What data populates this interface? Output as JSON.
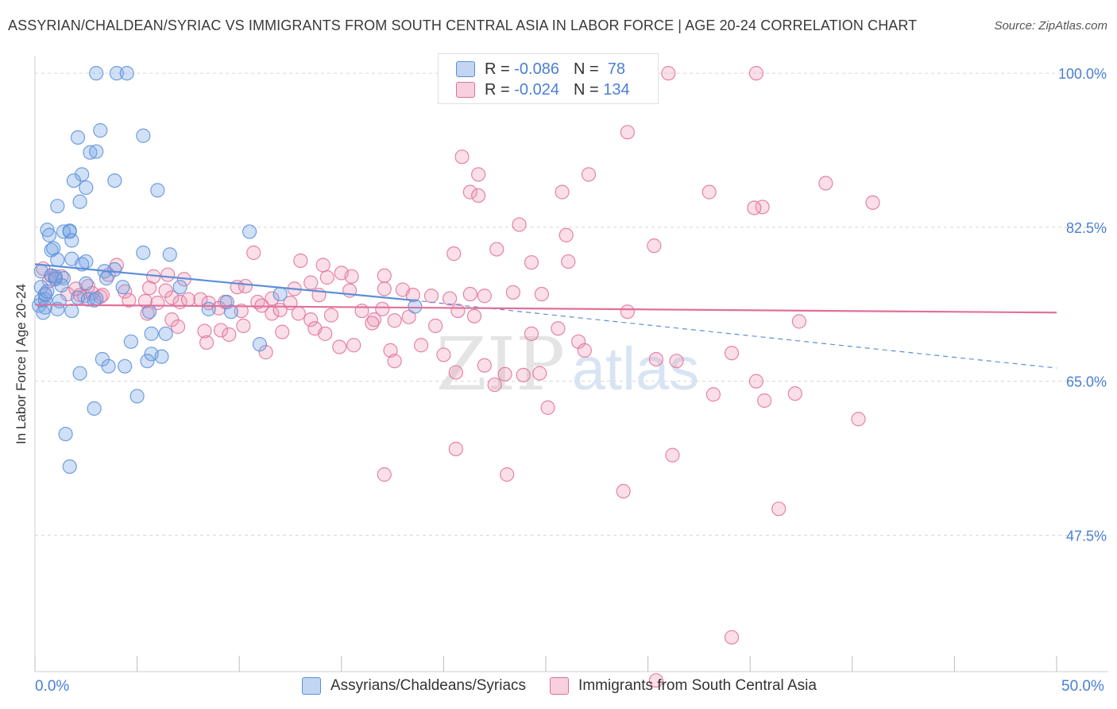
{
  "title": "ASSYRIAN/CHALDEAN/SYRIAC VS IMMIGRANTS FROM SOUTH CENTRAL ASIA IN LABOR FORCE | AGE 20-24 CORRELATION CHART",
  "source": "Source: ZipAtlas.com",
  "watermark": {
    "zip": "ZIP",
    "atlas": "atlas"
  },
  "legend": {
    "rows": [
      {
        "r_label": "R =",
        "r_value": "-0.086",
        "n_label": "N =",
        "n_value": "78"
      },
      {
        "r_label": "R =",
        "r_value": "-0.024",
        "n_label": "N =",
        "n_value": "134"
      }
    ]
  },
  "colors": {
    "blue": "#5b8fd9",
    "blue_fill": "rgba(120,165,230,0.35)",
    "pink": "#e0709a",
    "pink_fill": "rgba(240,150,180,0.30)",
    "tick_text": "#4a7fd4",
    "grid": "#d8d8d8"
  },
  "chart_data": {
    "type": "scatter",
    "xlabel": "",
    "ylabel": "In Labor Force | Age 20-24",
    "xlim": [
      0,
      50
    ],
    "ylim": [
      32,
      102
    ],
    "x_tick_labels": [
      "0.0%",
      "50.0%"
    ],
    "y_ticks": [
      100.0,
      82.5,
      65.0,
      47.5
    ],
    "y_tick_labels": [
      "100.0%",
      "82.5%",
      "65.0%",
      "47.5%"
    ],
    "grid": true,
    "legend_position": "top-center",
    "series": [
      {
        "name": "Assyrians/Chaldeans/Syriacs",
        "color": "blue",
        "r": -0.086,
        "n": 78,
        "trend": {
          "x": [
            0,
            18.5
          ],
          "y": [
            78.3,
            74.2
          ],
          "dashed_to": [
            50,
            66.5
          ]
        },
        "points": [
          [
            3.0,
            100.0
          ],
          [
            4.0,
            100.0
          ],
          [
            4.5,
            100.0
          ],
          [
            3.2,
            93.5
          ],
          [
            5.3,
            92.9
          ],
          [
            2.1,
            92.7
          ],
          [
            2.7,
            91.0
          ],
          [
            3.0,
            91.1
          ],
          [
            2.3,
            88.5
          ],
          [
            1.9,
            87.8
          ],
          [
            3.9,
            87.8
          ],
          [
            2.5,
            87.0
          ],
          [
            6.0,
            86.7
          ],
          [
            2.2,
            85.4
          ],
          [
            1.1,
            84.9
          ],
          [
            0.6,
            82.2
          ],
          [
            1.7,
            82.1
          ],
          [
            1.4,
            82.0
          ],
          [
            1.7,
            82.0
          ],
          [
            10.5,
            82.0
          ],
          [
            0.7,
            81.6
          ],
          [
            1.8,
            81.0
          ],
          [
            0.8,
            79.9
          ],
          [
            0.9,
            80.1
          ],
          [
            5.3,
            79.6
          ],
          [
            6.6,
            79.4
          ],
          [
            1.1,
            78.8
          ],
          [
            1.8,
            78.9
          ],
          [
            2.5,
            78.6
          ],
          [
            2.3,
            78.3
          ],
          [
            3.9,
            77.7
          ],
          [
            0.3,
            77.5
          ],
          [
            0.8,
            77.0
          ],
          [
            3.4,
            77.5
          ],
          [
            1.0,
            76.6
          ],
          [
            1.4,
            76.7
          ],
          [
            3.5,
            76.7
          ],
          [
            2.5,
            76.1
          ],
          [
            0.3,
            75.7
          ],
          [
            1.3,
            75.9
          ],
          [
            4.3,
            75.7
          ],
          [
            7.1,
            75.7
          ],
          [
            0.5,
            74.9
          ],
          [
            0.3,
            74.2
          ],
          [
            0.5,
            74.3
          ],
          [
            1.2,
            74.1
          ],
          [
            2.1,
            74.5
          ],
          [
            2.6,
            74.3
          ],
          [
            2.9,
            74.2
          ],
          [
            3.0,
            74.4
          ],
          [
            9.4,
            74.0
          ],
          [
            12.0,
            74.9
          ],
          [
            0.2,
            73.6
          ],
          [
            0.5,
            73.4
          ],
          [
            1.1,
            73.2
          ],
          [
            1.8,
            73.0
          ],
          [
            0.4,
            72.8
          ],
          [
            5.6,
            72.9
          ],
          [
            9.6,
            72.9
          ],
          [
            18.6,
            73.5
          ],
          [
            5.7,
            70.4
          ],
          [
            6.4,
            70.4
          ],
          [
            4.7,
            69.5
          ],
          [
            11.0,
            69.2
          ],
          [
            5.7,
            68.1
          ],
          [
            6.2,
            67.8
          ],
          [
            3.3,
            67.5
          ],
          [
            5.5,
            67.3
          ],
          [
            3.6,
            66.7
          ],
          [
            4.4,
            66.7
          ],
          [
            2.2,
            65.9
          ],
          [
            5.0,
            63.3
          ],
          [
            2.9,
            61.9
          ],
          [
            1.5,
            59.0
          ],
          [
            1.7,
            55.3
          ],
          [
            8.5,
            73.2
          ],
          [
            1.0,
            76.9
          ],
          [
            0.6,
            75.2
          ]
        ]
      },
      {
        "name": "Immigrants from South Central Asia",
        "color": "pink",
        "r": -0.024,
        "n": 134,
        "trend": {
          "x": [
            0,
            50
          ],
          "y": [
            73.7,
            72.8
          ]
        },
        "points": [
          [
            24.5,
            100.3
          ],
          [
            31.0,
            100.0
          ],
          [
            35.3,
            100.0
          ],
          [
            29.0,
            93.3
          ],
          [
            20.9,
            90.5
          ],
          [
            21.7,
            88.5
          ],
          [
            25.8,
            86.5
          ],
          [
            27.1,
            88.5
          ],
          [
            21.3,
            86.5
          ],
          [
            21.7,
            86.1
          ],
          [
            33.0,
            86.5
          ],
          [
            35.6,
            84.8
          ],
          [
            38.7,
            87.5
          ],
          [
            41.0,
            85.3
          ],
          [
            35.2,
            84.7
          ],
          [
            23.7,
            82.8
          ],
          [
            26.0,
            81.6
          ],
          [
            30.3,
            80.4
          ],
          [
            22.6,
            80.0
          ],
          [
            10.7,
            79.6
          ],
          [
            20.5,
            79.5
          ],
          [
            24.3,
            78.5
          ],
          [
            26.1,
            78.6
          ],
          [
            13.0,
            78.7
          ],
          [
            14.1,
            78.2
          ],
          [
            15.0,
            77.3
          ],
          [
            15.5,
            76.9
          ],
          [
            14.3,
            76.8
          ],
          [
            13.5,
            76.2
          ],
          [
            17.1,
            77.0
          ],
          [
            9.9,
            75.7
          ],
          [
            10.3,
            75.8
          ],
          [
            15.4,
            75.3
          ],
          [
            12.7,
            75.5
          ],
          [
            18.0,
            75.4
          ],
          [
            17.1,
            75.5
          ],
          [
            18.5,
            74.8
          ],
          [
            19.4,
            74.7
          ],
          [
            20.3,
            74.4
          ],
          [
            22.0,
            74.7
          ],
          [
            23.4,
            75.1
          ],
          [
            24.8,
            74.9
          ],
          [
            21.3,
            74.9
          ],
          [
            13.9,
            74.8
          ],
          [
            11.6,
            74.4
          ],
          [
            10.9,
            74.0
          ],
          [
            12.5,
            73.9
          ],
          [
            9.3,
            74.0
          ],
          [
            8.1,
            74.3
          ],
          [
            6.7,
            74.5
          ],
          [
            7.1,
            74.0
          ],
          [
            2.4,
            74.7
          ],
          [
            3.2,
            74.6
          ],
          [
            0.4,
            77.8
          ],
          [
            0.8,
            77.0
          ],
          [
            1.0,
            76.7
          ],
          [
            0.7,
            76.4
          ],
          [
            2.8,
            75.0
          ],
          [
            2.2,
            74.8
          ],
          [
            1.6,
            74.9
          ],
          [
            0.5,
            74.8
          ],
          [
            2.0,
            75.5
          ],
          [
            3.6,
            77.1
          ],
          [
            4.0,
            78.2
          ],
          [
            1.3,
            76.9
          ],
          [
            2.6,
            75.8
          ],
          [
            3.3,
            74.8
          ],
          [
            4.4,
            75.2
          ],
          [
            4.6,
            74.2
          ],
          [
            5.4,
            74.1
          ],
          [
            5.6,
            75.6
          ],
          [
            5.8,
            76.9
          ],
          [
            6.4,
            75.3
          ],
          [
            6.5,
            77.1
          ],
          [
            7.3,
            76.6
          ],
          [
            7.5,
            74.3
          ],
          [
            8.5,
            73.9
          ],
          [
            9.0,
            73.3
          ],
          [
            10.1,
            73.0
          ],
          [
            11.1,
            73.6
          ],
          [
            11.6,
            72.7
          ],
          [
            12.0,
            73.1
          ],
          [
            12.9,
            72.7
          ],
          [
            13.5,
            72.0
          ],
          [
            14.5,
            72.5
          ],
          [
            16.0,
            73.0
          ],
          [
            17.0,
            73.2
          ],
          [
            16.6,
            72.0
          ],
          [
            17.6,
            71.9
          ],
          [
            18.3,
            72.3
          ],
          [
            19.6,
            71.3
          ],
          [
            20.7,
            73.0
          ],
          [
            21.5,
            72.4
          ],
          [
            5.5,
            72.7
          ],
          [
            6.0,
            73.9
          ],
          [
            6.7,
            72.0
          ],
          [
            7.0,
            71.2
          ],
          [
            8.3,
            70.7
          ],
          [
            8.4,
            69.4
          ],
          [
            9.1,
            70.8
          ],
          [
            9.5,
            70.3
          ],
          [
            10.2,
            71.3
          ],
          [
            11.3,
            68.3
          ],
          [
            12.1,
            70.6
          ],
          [
            13.7,
            71.0
          ],
          [
            14.2,
            70.4
          ],
          [
            14.9,
            68.9
          ],
          [
            15.6,
            69.1
          ],
          [
            16.5,
            71.6
          ],
          [
            17.4,
            68.5
          ],
          [
            17.6,
            67.3
          ],
          [
            18.9,
            69.1
          ],
          [
            20.0,
            68.0
          ],
          [
            20.6,
            66.0
          ],
          [
            22.0,
            66.8
          ],
          [
            22.5,
            64.6
          ],
          [
            23.0,
            65.8
          ],
          [
            23.9,
            65.7
          ],
          [
            24.7,
            65.9
          ],
          [
            24.3,
            70.4
          ],
          [
            25.6,
            71.0
          ],
          [
            25.1,
            62.0
          ],
          [
            26.6,
            69.5
          ],
          [
            26.9,
            68.5
          ],
          [
            29.0,
            72.9
          ],
          [
            30.4,
            67.5
          ],
          [
            31.4,
            67.3
          ],
          [
            34.1,
            68.2
          ],
          [
            35.3,
            65.0
          ],
          [
            35.7,
            62.8
          ],
          [
            37.2,
            63.6
          ],
          [
            37.4,
            71.8
          ],
          [
            33.2,
            63.5
          ],
          [
            31.2,
            56.6
          ],
          [
            40.3,
            60.7
          ],
          [
            36.4,
            50.5
          ],
          [
            28.8,
            52.5
          ],
          [
            23.1,
            54.4
          ],
          [
            17.1,
            54.4
          ],
          [
            20.6,
            57.3
          ],
          [
            34.1,
            35.9
          ],
          [
            30.4,
            31.0
          ]
        ]
      }
    ]
  },
  "bottom_legend": [
    "Assyrians/Chaldeans/Syriacs",
    "Immigrants from South Central Asia"
  ]
}
